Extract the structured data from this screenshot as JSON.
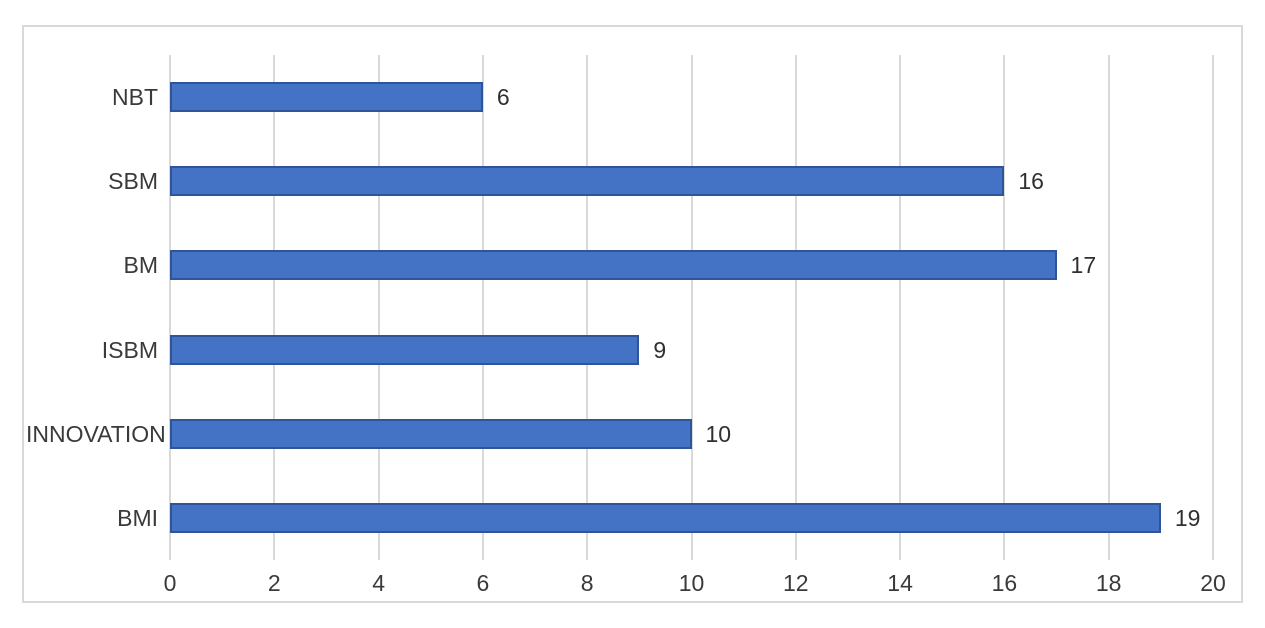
{
  "chart_data": {
    "type": "bar",
    "orientation": "horizontal",
    "title": "",
    "xlabel": "",
    "ylabel": "",
    "categories": [
      "NBT",
      "SBM",
      "BM",
      "ISBM",
      "INNOVATION",
      "BMI"
    ],
    "values": [
      6,
      16,
      17,
      9,
      10,
      19
    ],
    "data_labels": [
      "6",
      "16",
      "17",
      "9",
      "10",
      "19"
    ],
    "xlim": [
      0,
      20
    ],
    "xticks": [
      0,
      2,
      4,
      6,
      8,
      10,
      12,
      14,
      16,
      18,
      20
    ],
    "xtick_labels": [
      "0",
      "2",
      "4",
      "6",
      "8",
      "10",
      "12",
      "14",
      "16",
      "18",
      "20"
    ],
    "grid": "vertical-major",
    "legend": "none",
    "colors": {
      "bar_fill": "#4472C4",
      "bar_border": "#2E5597",
      "gridline": "#D9D9D9",
      "chart_border": "#D9D9D9",
      "text": "#3A3A3A",
      "background": "#FFFFFF"
    }
  }
}
